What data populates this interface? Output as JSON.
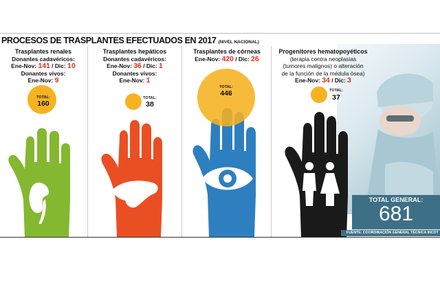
{
  "title": "PROCESOS DE TRASPLANTES EFECTUADOS EN 2017",
  "subtitle": "(NIVEL NACIONAL)",
  "columns": [
    {
      "name": "Trasplantes renales",
      "line1": "Donantes cadavéricos:",
      "l2_prefix": "Ene-Nov: ",
      "l2_a": "141",
      "l2_mid": " / Dic: ",
      "l2_b": "10",
      "line3": "Donantes vivos:",
      "l4_prefix": "Ene-Nov: ",
      "l4_a": "9",
      "total_label": "TOTAL:",
      "total": "160",
      "hand_color": "#84b830",
      "icon": "kidney-icon"
    },
    {
      "name": "Trasplantes hepáticos",
      "line1": "Donantes cadavéricos:",
      "l2_prefix": "Ene-Nov: ",
      "l2_a": "36",
      "l2_mid": " / Dic: ",
      "l2_b": "1",
      "line3": "Donantes vivos:",
      "l4_prefix": "Ene-Nov: ",
      "l4_a": "1",
      "total_label": "TOTAL:",
      "total": "38",
      "hand_color": "#ea4f23",
      "icon": "liver-icon"
    },
    {
      "name": "Trasplantes de córneas",
      "l2_prefix": "Ene-Nov: ",
      "l2_a": "420",
      "l2_mid": " / Dic: ",
      "l2_b": "26",
      "total_label": "TOTAL:",
      "total": "446",
      "hand_color": "#2e7fc0",
      "icon": "eye-icon"
    },
    {
      "name": "Progenitores hematopoyéticos",
      "line1": "(terapia contra neoplasias",
      "line2": "(tumores malignos) o alteración",
      "line3": "de la función de la médula ósea)",
      "l4_prefix": "Ene-Nov: ",
      "l4_a": "34",
      "l4_mid": " / Dic: ",
      "l4_b": "3",
      "total_label": "TOTAL:",
      "total": "37",
      "hand_color": "#1a1a1a",
      "icon": "people-icon"
    }
  ],
  "total_general_label": "TOTAL GENERAL:",
  "total_general": "681",
  "source": "FUENTE: COORDINACIÓN GENERAL TÉCNICA INCOT"
}
